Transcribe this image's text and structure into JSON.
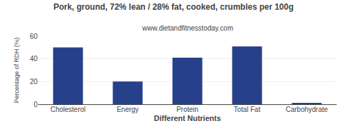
{
  "chart_data": {
    "type": "bar",
    "title": "Pork, ground, 72% lean / 28% fat, cooked, crumbles per 100g",
    "subtitle": "www.dietandfitnesstoday.com",
    "xlabel": "Different Nutrients",
    "ylabel": "Percentage of RDH (%)",
    "categories": [
      "Cholesterol",
      "Energy",
      "Protein",
      "Total Fat",
      "Carbohydrate"
    ],
    "values": [
      50,
      20,
      41,
      51,
      1
    ],
    "color": "#27408B",
    "ylim": [
      0,
      60
    ],
    "yticks": [
      0,
      20,
      40,
      60
    ],
    "grid": true
  }
}
